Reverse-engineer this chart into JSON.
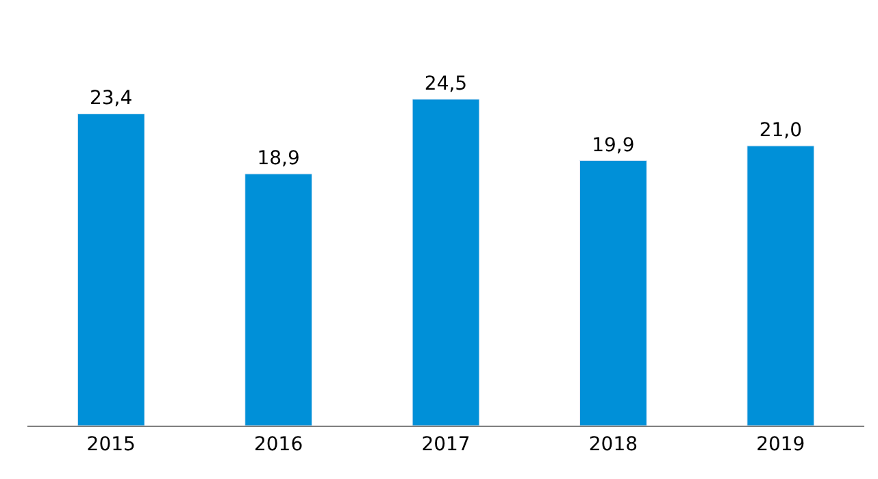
{
  "chart_data": {
    "type": "bar",
    "categories": [
      "2015",
      "2016",
      "2017",
      "2018",
      "2019"
    ],
    "values": [
      23.4,
      18.9,
      24.5,
      19.9,
      21.0
    ],
    "value_labels": [
      "23,4",
      "18,9",
      "24,5",
      "19,9",
      "21,0"
    ],
    "color": "#0090d8",
    "legend": false
  }
}
